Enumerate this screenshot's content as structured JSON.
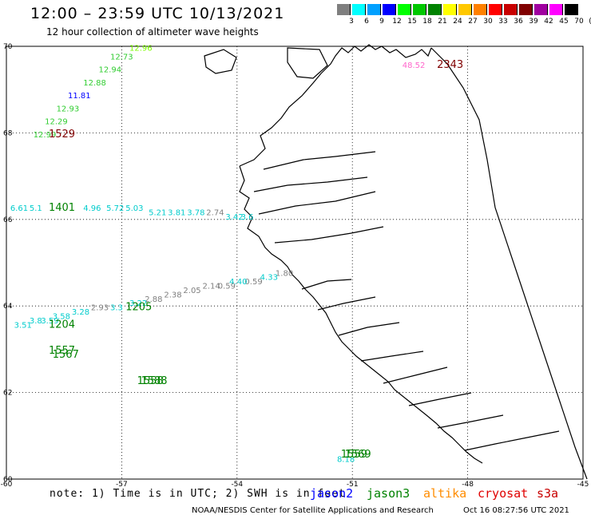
{
  "header": {
    "title": "12:00 – 23:59 UTC 10/13/2021",
    "subtitle": "12 hour collection of altimeter wave heights"
  },
  "color_scale": {
    "labels": [
      "3",
      "6",
      "9",
      "12",
      "15",
      "18",
      "21",
      "24",
      "27",
      "30",
      "33",
      "36",
      "39",
      "42",
      "45",
      "70",
      "(ft)"
    ],
    "colors": [
      "#7f7f7f",
      "#00ffff",
      "#00a0ff",
      "#0000ff",
      "#00ff00",
      "#00c800",
      "#008200",
      "#ffff00",
      "#ffc800",
      "#ff8000",
      "#ff0000",
      "#c80000",
      "#800000",
      "#a000a0",
      "#ff00ff",
      "#000000"
    ]
  },
  "axes": {
    "lon_ticks": [
      "-60",
      "-57",
      "-54",
      "-51",
      "-48",
      "-45"
    ],
    "lat_ticks": [
      "70",
      "68",
      "66",
      "64",
      "62",
      "60"
    ]
  },
  "observations": {
    "labels": [
      {
        "lon": -56.8,
        "lat": 69.9,
        "text": "12.96",
        "color": "#7cfc00"
      },
      {
        "lon": -57.3,
        "lat": 69.7,
        "text": "12.73",
        "color": "#32cd32"
      },
      {
        "lon": -57.6,
        "lat": 69.4,
        "text": "12.94",
        "color": "#32cd32"
      },
      {
        "lon": -58.0,
        "lat": 69.1,
        "text": "12.88",
        "color": "#32cd32"
      },
      {
        "lon": -58.4,
        "lat": 68.8,
        "text": "11.81",
        "color": "#0000ff"
      },
      {
        "lon": -58.7,
        "lat": 68.5,
        "text": "12.93",
        "color": "#32cd32"
      },
      {
        "lon": -59.0,
        "lat": 68.2,
        "text": "12.29",
        "color": "#32cd32"
      },
      {
        "lon": -59.3,
        "lat": 67.9,
        "text": "12.99",
        "color": "#32cd32"
      },
      {
        "lon": -49.7,
        "lat": 69.5,
        "text": "48.52",
        "color": "#ff66cc"
      },
      {
        "lon": -59.9,
        "lat": 66.2,
        "text": "6.61",
        "color": "#00cccc"
      },
      {
        "lon": -59.4,
        "lat": 66.2,
        "text": "5.1",
        "color": "#00cccc"
      },
      {
        "lon": -58.0,
        "lat": 66.2,
        "text": "4.96",
        "color": "#00cccc"
      },
      {
        "lon": -57.4,
        "lat": 66.2,
        "text": "5.72",
        "color": "#00cccc"
      },
      {
        "lon": -56.9,
        "lat": 66.2,
        "text": "5.03",
        "color": "#00cccc"
      },
      {
        "lon": -56.3,
        "lat": 66.1,
        "text": "5.21",
        "color": "#00cccc"
      },
      {
        "lon": -55.8,
        "lat": 66.1,
        "text": "3.81",
        "color": "#00cccc"
      },
      {
        "lon": -55.3,
        "lat": 66.1,
        "text": "3.78",
        "color": "#00cccc"
      },
      {
        "lon": -54.8,
        "lat": 66.1,
        "text": "2.74",
        "color": "#7f7f7f"
      },
      {
        "lon": -54.3,
        "lat": 66.0,
        "text": "3.42",
        "color": "#00cccc"
      },
      {
        "lon": -53.9,
        "lat": 66.0,
        "text": "3.6",
        "color": "#00cccc"
      },
      {
        "lon": -53.0,
        "lat": 64.7,
        "text": "1.80",
        "color": "#7f7f7f"
      },
      {
        "lon": -53.4,
        "lat": 64.6,
        "text": "4.33",
        "color": "#00cccc"
      },
      {
        "lon": -53.8,
        "lat": 64.5,
        "text": "0.59",
        "color": "#7f7f7f"
      },
      {
        "lon": -54.2,
        "lat": 64.5,
        "text": "4.40",
        "color": "#00cccc"
      },
      {
        "lon": -54.5,
        "lat": 64.4,
        "text": "0.59",
        "color": "#7f7f7f"
      },
      {
        "lon": -54.9,
        "lat": 64.4,
        "text": "2.14",
        "color": "#7f7f7f"
      },
      {
        "lon": -55.4,
        "lat": 64.3,
        "text": "2.05",
        "color": "#7f7f7f"
      },
      {
        "lon": -55.9,
        "lat": 64.2,
        "text": "2.38",
        "color": "#7f7f7f"
      },
      {
        "lon": -56.4,
        "lat": 64.1,
        "text": "2.88",
        "color": "#7f7f7f"
      },
      {
        "lon": -56.8,
        "lat": 64.0,
        "text": "3.22",
        "color": "#00cccc"
      },
      {
        "lon": -57.3,
        "lat": 63.9,
        "text": "3.3",
        "color": "#00cccc"
      },
      {
        "lon": -57.8,
        "lat": 63.9,
        "text": "2.93",
        "color": "#7f7f7f"
      },
      {
        "lon": -58.3,
        "lat": 63.8,
        "text": "3.28",
        "color": "#00cccc"
      },
      {
        "lon": -58.8,
        "lat": 63.7,
        "text": "3.58",
        "color": "#00cccc"
      },
      {
        "lon": -59.1,
        "lat": 63.6,
        "text": "3.59",
        "color": "#00cccc"
      },
      {
        "lon": -59.4,
        "lat": 63.6,
        "text": "3.8",
        "color": "#00cccc"
      },
      {
        "lon": -59.8,
        "lat": 63.5,
        "text": "3.51",
        "color": "#00cccc"
      },
      {
        "lon": -51.4,
        "lat": 60.4,
        "text": "8.18",
        "color": "#00cccc"
      }
    ],
    "times": [
      {
        "lon": -58.9,
        "lat": 67.9,
        "text": "1529",
        "color": "#800000"
      },
      {
        "lon": -48.8,
        "lat": 69.5,
        "text": "2343",
        "color": "#800000"
      },
      {
        "lon": -58.9,
        "lat": 66.2,
        "text": "1401",
        "color": "#008200"
      },
      {
        "lon": -56.9,
        "lat": 63.9,
        "text": "1205",
        "color": "#008200"
      },
      {
        "lon": -58.9,
        "lat": 63.5,
        "text": "1204",
        "color": "#008200"
      },
      {
        "lon": -58.9,
        "lat": 62.9,
        "text": "1557",
        "color": "#008200"
      },
      {
        "lon": -58.8,
        "lat": 62.8,
        "text": "1567",
        "color": "#008200"
      },
      {
        "lon": -56.6,
        "lat": 62.2,
        "text": "1558",
        "color": "#008200"
      },
      {
        "lon": -56.5,
        "lat": 62.2,
        "text": "1588",
        "color": "#008200"
      },
      {
        "lon": -51.3,
        "lat": 60.5,
        "text": "1559",
        "color": "#008200"
      },
      {
        "lon": -51.2,
        "lat": 60.5,
        "text": "1569",
        "color": "#008200"
      }
    ]
  },
  "footer": {
    "note": "note: 1) Time is in UTC; 2) SWH is in feet",
    "satellites": [
      {
        "name": "jason2",
        "color": "#0000ff"
      },
      {
        "name": "jason3",
        "color": "#008200"
      },
      {
        "name": "altika",
        "color": "#ff8c00"
      },
      {
        "name": "cryosat",
        "color": "#e00000"
      },
      {
        "name": "s3a",
        "color": "#c80000"
      }
    ],
    "credit": "NOAA/NESDIS Center for Satellite Applications and Research",
    "timestamp": "Oct 16 08:27:56 UTC 2021"
  }
}
